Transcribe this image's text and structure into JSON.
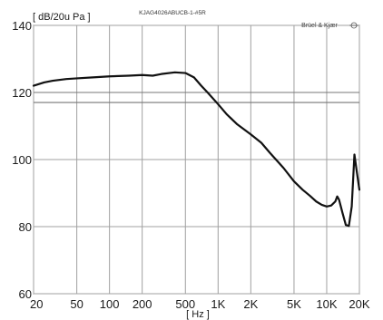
{
  "chart_data": {
    "type": "line",
    "title": "KJAG4026ABUCB-1-#5R",
    "brand": "Brüel & Kjær",
    "ylabel": "[ dB/20u Pa ]",
    "xlabel": "[ Hz ]",
    "xscale": "log",
    "xlim": [
      20,
      20000
    ],
    "ylim": [
      60,
      140
    ],
    "grid": true,
    "x_ticks": [
      {
        "value": 20,
        "label": "20"
      },
      {
        "value": 50,
        "label": "50"
      },
      {
        "value": 100,
        "label": "100"
      },
      {
        "value": 200,
        "label": "200"
      },
      {
        "value": 500,
        "label": "500"
      },
      {
        "value": 1000,
        "label": "1K"
      },
      {
        "value": 2000,
        "label": "2K"
      },
      {
        "value": 5000,
        "label": "5K"
      },
      {
        "value": 10000,
        "label": "10K"
      },
      {
        "value": 20000,
        "label": "20K"
      }
    ],
    "y_ticks": [
      {
        "value": 60,
        "label": "60"
      },
      {
        "value": 80,
        "label": "80"
      },
      {
        "value": 100,
        "label": "100"
      },
      {
        "value": 120,
        "label": "120"
      },
      {
        "value": 140,
        "label": "140"
      }
    ],
    "reference_lines": [
      120,
      117
    ],
    "series": [
      {
        "color": "#111111",
        "x": [
          20,
          25,
          30,
          40,
          50,
          70,
          100,
          150,
          200,
          250,
          300,
          400,
          500,
          600,
          700,
          800,
          1000,
          1200,
          1500,
          2000,
          2500,
          3000,
          4000,
          5000,
          6000,
          7000,
          8000,
          9000,
          10000,
          11000,
          12000,
          12500,
          13000,
          14000,
          15000,
          16000,
          17000,
          18000,
          19000,
          20000
        ],
        "y": [
          122,
          123,
          123.5,
          124,
          124.2,
          124.5,
          124.8,
          125,
          125.2,
          125,
          125.5,
          126,
          125.8,
          124.5,
          122,
          120,
          116.5,
          113.5,
          110.5,
          107.5,
          105,
          102,
          97.5,
          93.5,
          91,
          89.2,
          87.5,
          86.5,
          86,
          86.3,
          87.5,
          89,
          88,
          84,
          80.5,
          80.2,
          86,
          101.5,
          96,
          91
        ]
      }
    ]
  }
}
